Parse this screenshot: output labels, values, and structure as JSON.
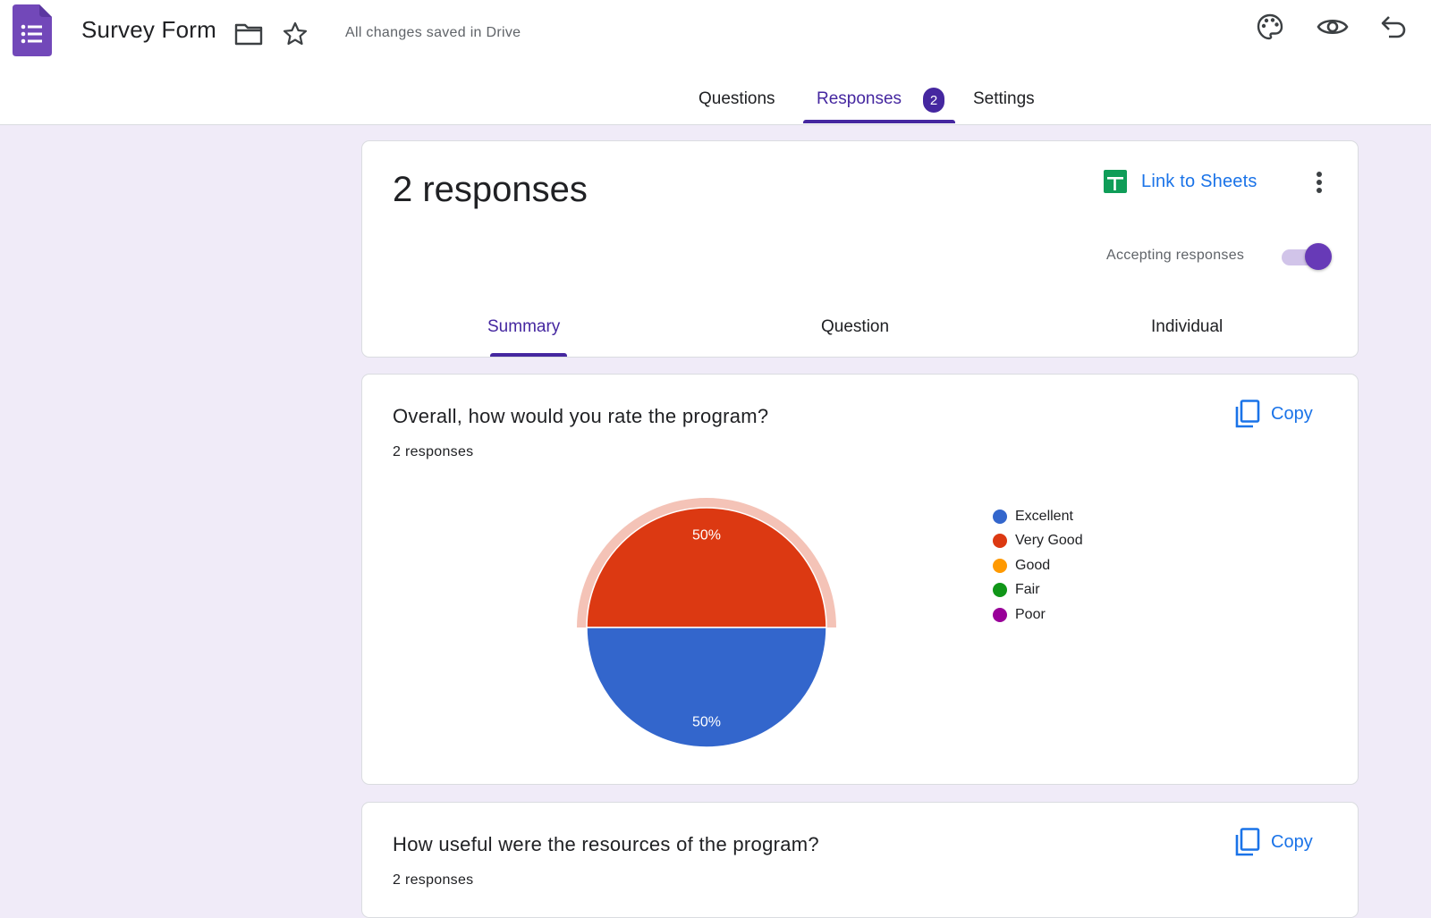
{
  "app": {
    "form_title": "Survey Form",
    "save_status": "All changes saved in Drive"
  },
  "tabs": [
    {
      "label": "Questions"
    },
    {
      "label": "Responses"
    },
    {
      "label": "Settings"
    }
  ],
  "responses_badge": "2",
  "summary_card": {
    "count_text": "2 responses",
    "link_sheets_label": "Link to Sheets",
    "accepting_label": "Accepting responses",
    "accepting_on": true,
    "sub_tabs": [
      {
        "label": "Summary"
      },
      {
        "label": "Question"
      },
      {
        "label": "Individual"
      }
    ]
  },
  "questions": [
    {
      "title": "Overall, how would you rate the program?",
      "count": "2 responses",
      "copy_label": "Copy"
    },
    {
      "title": "How useful were the resources of the program?",
      "count": "2 responses",
      "copy_label": "Copy"
    }
  ],
  "colors": {
    "accent": "#4527a0",
    "link": "#1a73e8",
    "background": "#f0ebf8"
  },
  "icons": [
    "forms-logo-icon",
    "folder-icon",
    "star-icon",
    "palette-icon",
    "eye-icon",
    "undo-icon",
    "sheets-icon",
    "more-vert-icon",
    "copy-icon"
  ],
  "chart_data": {
    "type": "pie",
    "categories": [
      "Excellent",
      "Very Good",
      "Good",
      "Fair",
      "Poor"
    ],
    "values": [
      50,
      50,
      0,
      0,
      0
    ],
    "colors": [
      "#3366cc",
      "#dc3912",
      "#ff9900",
      "#109618",
      "#990099"
    ],
    "labels": [
      "50%",
      "50%"
    ],
    "highlighted": "Very Good",
    "legend_position": "right"
  }
}
